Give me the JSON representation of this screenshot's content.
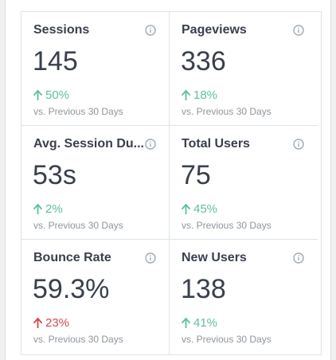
{
  "compare_label": "vs. Previous 30 Days",
  "colors": {
    "up": "#5cc0a0",
    "down": "#d4474e",
    "info": "#a0aab2"
  },
  "stats": [
    {
      "label": "Sessions",
      "value": "145",
      "change": "50%",
      "direction": "up"
    },
    {
      "label": "Pageviews",
      "value": "336",
      "change": "18%",
      "direction": "up"
    },
    {
      "label": "Avg. Session Du...",
      "value": "53s",
      "change": "2%",
      "direction": "up"
    },
    {
      "label": "Total Users",
      "value": "75",
      "change": "45%",
      "direction": "up"
    },
    {
      "label": "Bounce Rate",
      "value": "59.3%",
      "change": "23%",
      "direction": "down"
    },
    {
      "label": "New Users",
      "value": "138",
      "change": "41%",
      "direction": "up"
    }
  ]
}
